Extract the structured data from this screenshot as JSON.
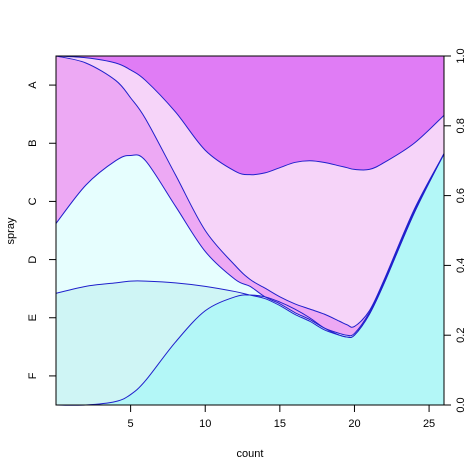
{
  "chart_data": {
    "type": "area",
    "subtype": "conditional density plot",
    "xlabel": "count",
    "ylabel": "spray",
    "xlim": [
      0,
      26
    ],
    "ylim": [
      0,
      1
    ],
    "x_ticks": [
      5,
      10,
      15,
      20,
      25
    ],
    "y_ticks": [
      0.0,
      0.2,
      0.4,
      0.6,
      0.8,
      1.0
    ],
    "categories": [
      "A",
      "B",
      "C",
      "D",
      "E",
      "F"
    ],
    "x": [
      0,
      2,
      4,
      5,
      6,
      8,
      10,
      12,
      13,
      14,
      15,
      16,
      17,
      18,
      19,
      19.5,
      20,
      21,
      22,
      24,
      26
    ],
    "series": [
      {
        "name": "F",
        "color": "#b3f7f7",
        "cumulative": [
          0.0,
          0.0,
          0.01,
          0.03,
          0.07,
          0.18,
          0.27,
          0.31,
          0.315,
          0.31,
          0.295,
          0.275,
          0.25,
          0.22,
          0.2,
          0.195,
          0.2,
          0.26,
          0.35,
          0.55,
          0.72
        ]
      },
      {
        "name": "E",
        "color": "#cff5f5",
        "cumulative": [
          0.32,
          0.34,
          0.35,
          0.355,
          0.355,
          0.35,
          0.34,
          0.325,
          0.315,
          0.305,
          0.285,
          0.26,
          0.24,
          0.215,
          0.2,
          0.195,
          0.2,
          0.26,
          0.35,
          0.55,
          0.72
        ]
      },
      {
        "name": "D",
        "color": "#e6fefe",
        "cumulative": [
          0.52,
          0.63,
          0.7,
          0.715,
          0.7,
          0.57,
          0.44,
          0.36,
          0.34,
          0.31,
          0.29,
          0.265,
          0.245,
          0.22,
          0.205,
          0.2,
          0.205,
          0.265,
          0.355,
          0.555,
          0.72
        ]
      },
      {
        "name": "C",
        "color": "#eda9f4",
        "cumulative": [
          1.0,
          0.98,
          0.93,
          0.88,
          0.82,
          0.66,
          0.5,
          0.4,
          0.36,
          0.335,
          0.31,
          0.29,
          0.275,
          0.26,
          0.24,
          0.23,
          0.225,
          0.27,
          0.36,
          0.56,
          0.72
        ]
      },
      {
        "name": "B",
        "color": "#f6d4f9",
        "cumulative": [
          1.0,
          0.995,
          0.98,
          0.96,
          0.93,
          0.84,
          0.73,
          0.67,
          0.66,
          0.665,
          0.68,
          0.695,
          0.7,
          0.695,
          0.685,
          0.68,
          0.675,
          0.675,
          0.695,
          0.75,
          0.83
        ]
      },
      {
        "name": "A",
        "color": "#e07cf5",
        "cumulative": [
          1.0,
          1.0,
          1.0,
          1.0,
          1.0,
          1.0,
          1.0,
          1.0,
          1.0,
          1.0,
          1.0,
          1.0,
          1.0,
          1.0,
          1.0,
          1.0,
          1.0,
          1.0,
          1.0,
          1.0,
          1.0
        ]
      }
    ],
    "grid": false,
    "outline_color": "#2020cc"
  }
}
